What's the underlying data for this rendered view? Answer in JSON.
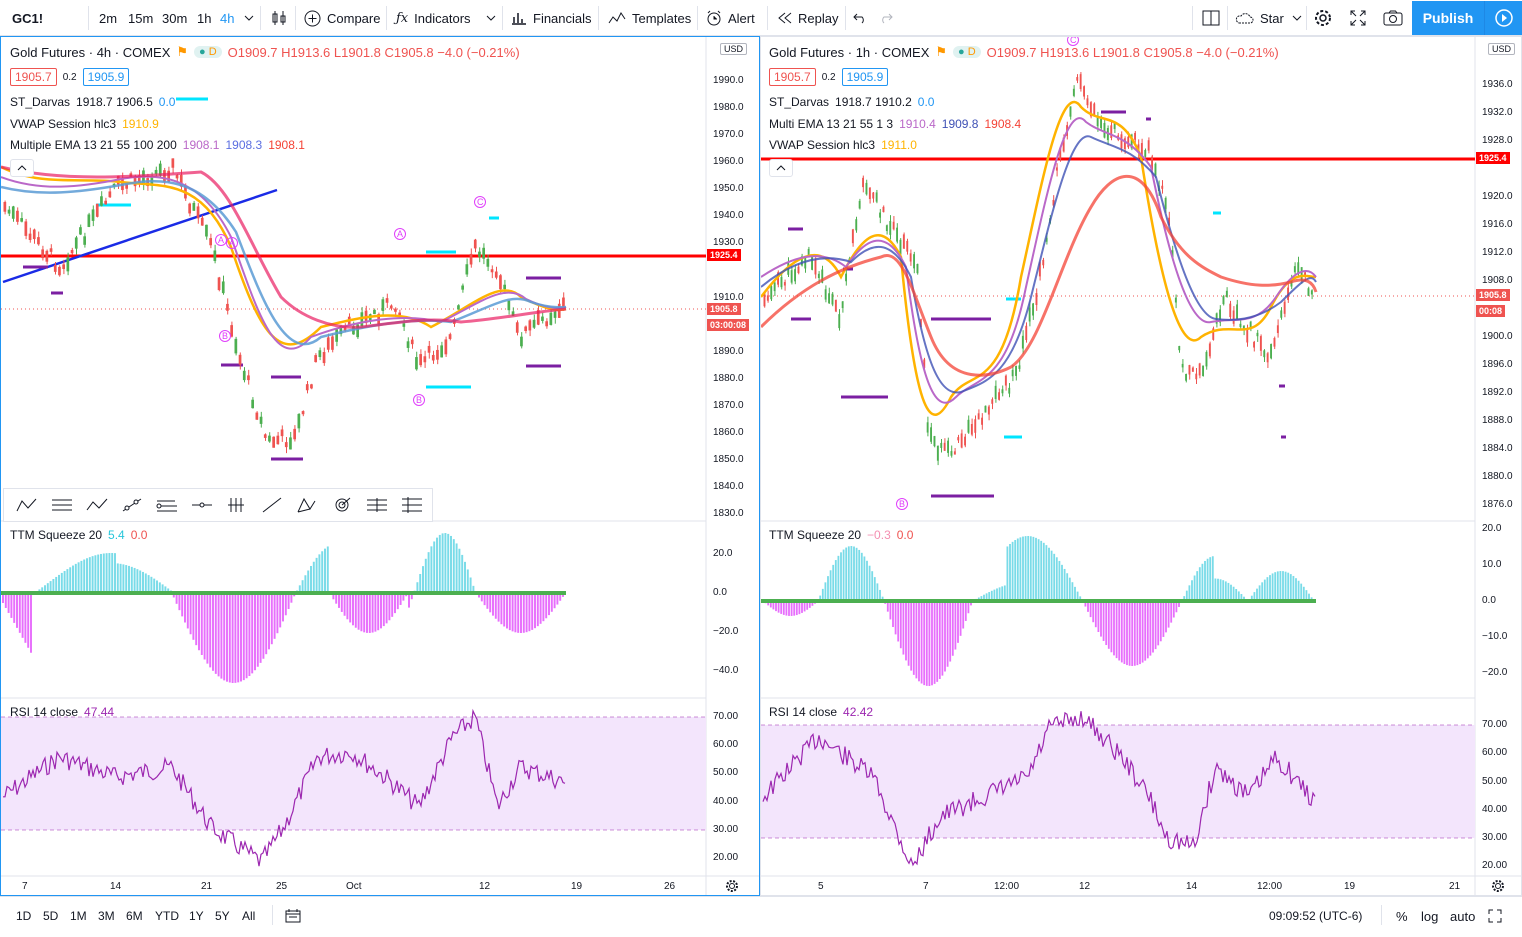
{
  "symbol": "GC1!",
  "toolbar": {
    "intervals": [
      "2m",
      "15m",
      "30m",
      "1h",
      "4h"
    ],
    "compare": "Compare",
    "indicators": "Indicators",
    "financials": "Financials",
    "templates": "Templates",
    "alert": "Alert",
    "replay": "Replay",
    "layout_name": "Star",
    "publish": "Publish"
  },
  "left_chart": {
    "title": "Gold Futures · 4h · COMEX",
    "ohlc": "O1909.7 H1913.6 L1901.8 C1905.8 −4.0 (−0.21%)",
    "bid": "1905.7",
    "spread": "0.2",
    "ask": "1905.9",
    "ind1_name": "ST_Darvas",
    "ind1_vals": "1918.7 1906.5",
    "ind1_v3": "0.0",
    "ind2_name": "VWAP Session hlc3",
    "ind2_val": "1910.9",
    "ind3_name": "Multiple EMA 13 21 55 100 200",
    "ind3_v1": "1908.1",
    "ind3_v2": "1908.3",
    "ind3_v3": "1908.1",
    "currency": "USD",
    "price_axis": [
      "1990.0",
      "1980.0",
      "1970.0",
      "1960.0",
      "1950.0",
      "1940.0",
      "1930.0",
      "1910.0",
      "1890.0",
      "1880.0",
      "1870.0",
      "1860.0",
      "1850.0",
      "1840.0",
      "1830.0"
    ],
    "level_tag": "1925.4",
    "last_tag": "1905.8",
    "countdown": "03:00:08",
    "ttm_name": "TTM Squeeze 20",
    "ttm_v1": "5.4",
    "ttm_v2": "0.0",
    "ttm_axis": [
      "20.0",
      "0.0",
      "−20.0",
      "−40.0"
    ],
    "rsi_name": "RSI 14 close",
    "rsi_val": "47.44",
    "rsi_axis": [
      "70.00",
      "60.00",
      "50.00",
      "40.00",
      "30.00",
      "20.00"
    ],
    "time_axis": [
      "7",
      "14",
      "21",
      "25",
      "Oct",
      "12",
      "19",
      "26"
    ],
    "markers": [
      "A",
      "A",
      "B",
      "C",
      "B"
    ]
  },
  "right_chart": {
    "title": "Gold Futures · 1h · COMEX",
    "ohlc": "O1909.7 H1913.6 L1901.8 C1905.8 −4.0 (−0.21%)",
    "bid": "1905.7",
    "spread": "0.2",
    "ask": "1905.9",
    "ind1_name": "ST_Darvas",
    "ind1_vals": "1918.7 1910.2",
    "ind1_v3": "0.0",
    "ind2_name": "Multi EMA 13 21 55 1 3",
    "ind2_v1": "1910.4",
    "ind2_v2": "1909.8",
    "ind2_v3": "1908.4",
    "ind3_name": "VWAP Session hlc3",
    "ind3_val": "1911.0",
    "currency": "USD",
    "price_axis": [
      "1936.0",
      "1932.0",
      "1928.0",
      "1920.0",
      "1916.0",
      "1912.0",
      "1908.0",
      "1900.0",
      "1896.0",
      "1892.0",
      "1888.0",
      "1884.0",
      "1880.0",
      "1876.0"
    ],
    "level_tag": "1925.4",
    "last_tag": "1905.8",
    "countdown": "00:08",
    "ttm_name": "TTM Squeeze 20",
    "ttm_v1": "−0.3",
    "ttm_v2": "0.0",
    "ttm_axis": [
      "20.0",
      "10.0",
      "0.0",
      "−10.0",
      "−20.0"
    ],
    "rsi_name": "RSI 14 close",
    "rsi_val": "42.42",
    "rsi_axis": [
      "70.00",
      "60.00",
      "50.00",
      "40.00",
      "30.00",
      "20.00"
    ],
    "time_axis": [
      "5",
      "7",
      "12:00",
      "12",
      "14",
      "12:00",
      "19",
      "21"
    ],
    "markers": [
      "C",
      "B"
    ]
  },
  "bottom": {
    "ranges": [
      "1D",
      "5D",
      "1M",
      "3M",
      "6M",
      "YTD",
      "1Y",
      "5Y",
      "All"
    ],
    "clock": "09:09:52 (UTC-6)",
    "pct": "%",
    "log": "log",
    "auto": "auto"
  },
  "colors": {
    "accent": "#2196f3",
    "level": "#ff0000",
    "up": "#4caf50",
    "down": "#ef5350",
    "ema_orange": "#ffb300",
    "ema_violet": "#ba68c8",
    "ema_blue": "#5b6ee1",
    "ema_red": "#f44336",
    "rsi": "#9c27b0",
    "rsi_band": "#f3e5fc"
  }
}
